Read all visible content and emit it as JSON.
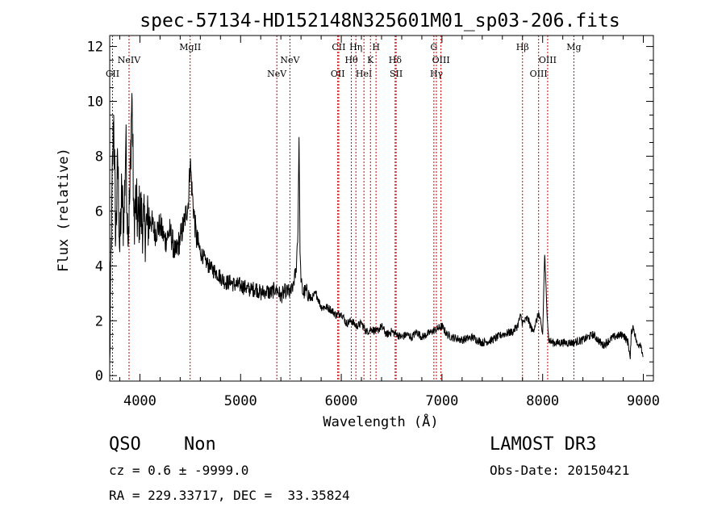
{
  "chart_data": {
    "type": "line",
    "title": "spec-57134-HD152148N325601M01_sp03-206.fits",
    "xlabel": "Wavelength (Å)",
    "ylabel": "Flux (relative)",
    "xlim": [
      3700,
      9100
    ],
    "ylim": [
      -0.2,
      12.4
    ],
    "x_ticks": [
      4000,
      5000,
      6000,
      7000,
      8000,
      9000
    ],
    "y_ticks": [
      0,
      2,
      4,
      6,
      8,
      10,
      12
    ],
    "x_tick_labels": [
      "4000",
      "5000",
      "6000",
      "7000",
      "8000",
      "9000"
    ],
    "y_tick_labels": [
      "0",
      "2",
      "4",
      "6",
      "8",
      "10",
      "12"
    ],
    "grid": false,
    "series": [
      {
        "name": "flux",
        "x": [
          3700,
          3720,
          3740,
          3760,
          3780,
          3800,
          3820,
          3840,
          3860,
          3880,
          3900,
          3920,
          3940,
          3960,
          3980,
          4000,
          4050,
          4100,
          4150,
          4200,
          4250,
          4300,
          4350,
          4400,
          4440,
          4480,
          4500,
          4520,
          4560,
          4600,
          4650,
          4700,
          4750,
          4800,
          4850,
          4900,
          4950,
          5000,
          5050,
          5100,
          5150,
          5200,
          5250,
          5300,
          5350,
          5400,
          5450,
          5500,
          5520,
          5550,
          5570,
          5580,
          5590,
          5600,
          5620,
          5650,
          5700,
          5750,
          5800,
          5850,
          5900,
          5950,
          6000,
          6050,
          6100,
          6150,
          6200,
          6250,
          6300,
          6350,
          6400,
          6450,
          6500,
          6550,
          6600,
          6650,
          6700,
          6750,
          6800,
          6850,
          6900,
          6950,
          7000,
          7050,
          7100,
          7200,
          7300,
          7400,
          7500,
          7600,
          7700,
          7750,
          7780,
          7800,
          7850,
          7900,
          7940,
          7960,
          8000,
          8020,
          8040,
          8060,
          8100,
          8200,
          8300,
          8400,
          8500,
          8600,
          8700,
          8800,
          8850,
          8870,
          8880,
          8900,
          8940,
          8970,
          9000
        ],
        "y": [
          0.5,
          6.2,
          9.5,
          5.0,
          7.8,
          4.5,
          6.8,
          5.2,
          8.6,
          5.0,
          6.5,
          10.3,
          5.8,
          6.3,
          5.6,
          6.0,
          5.3,
          5.8,
          5.2,
          5.5,
          4.9,
          5.3,
          4.4,
          5.0,
          5.6,
          6.3,
          7.8,
          6.6,
          5.0,
          4.5,
          4.2,
          3.9,
          3.8,
          3.6,
          3.4,
          3.4,
          3.3,
          3.3,
          3.2,
          3.1,
          3.2,
          3.0,
          3.1,
          3.0,
          3.2,
          2.9,
          3.1,
          3.0,
          3.3,
          3.8,
          5.3,
          8.7,
          4.5,
          3.4,
          3.0,
          3.1,
          2.8,
          3.0,
          2.5,
          2.5,
          2.4,
          2.2,
          2.3,
          1.9,
          2.0,
          1.8,
          1.9,
          1.6,
          1.7,
          1.6,
          1.8,
          1.5,
          1.6,
          1.5,
          1.4,
          1.5,
          1.4,
          1.6,
          1.4,
          1.5,
          1.6,
          1.7,
          1.8,
          1.5,
          1.4,
          1.3,
          1.4,
          1.2,
          1.3,
          1.5,
          1.6,
          1.8,
          2.2,
          1.9,
          2.1,
          1.6,
          2.0,
          2.3,
          1.5,
          4.4,
          2.6,
          1.3,
          1.2,
          1.2,
          1.2,
          1.3,
          1.5,
          1.1,
          1.4,
          1.5,
          1.2,
          0.6,
          1.6,
          1.8,
          1.1,
          1.2,
          0.7
        ]
      }
    ],
    "line_markers": [
      {
        "label": "CII",
        "x": 3728,
        "row": 3
      },
      {
        "label": "NeIV",
        "x": 3892,
        "row": 2
      },
      {
        "label": "MgII",
        "x": 4499,
        "row": 1
      },
      {
        "label": "NeV",
        "x": 5360,
        "row": 3
      },
      {
        "label": "NeV",
        "x": 5490,
        "row": 2
      },
      {
        "label": "OII",
        "x": 5965,
        "row": 3
      },
      {
        "label": "CII",
        "x": 5975,
        "row": 1
      },
      {
        "label": "Hθ",
        "x": 6100,
        "row": 2
      },
      {
        "label": "Hη",
        "x": 6145,
        "row": 1
      },
      {
        "label": "HeI",
        "x": 6225,
        "row": 3
      },
      {
        "label": "K",
        "x": 6290,
        "row": 2
      },
      {
        "label": "H",
        "x": 6345,
        "row": 1
      },
      {
        "label": "Hδ",
        "x": 6535,
        "row": 2
      },
      {
        "label": "SII",
        "x": 6545,
        "row": 3
      },
      {
        "label": "G",
        "x": 6920,
        "row": 1
      },
      {
        "label": "Hγ",
        "x": 6945,
        "row": 3
      },
      {
        "label": "OIII",
        "x": 6990,
        "row": 2
      },
      {
        "label": "Hβ",
        "x": 7800,
        "row": 1
      },
      {
        "label": "OIII",
        "x": 7960,
        "row": 3
      },
      {
        "label": "OIII",
        "x": 8050,
        "row": 2
      },
      {
        "label": "Mg",
        "x": 8310,
        "row": 1
      }
    ]
  },
  "info": {
    "class": "QSO",
    "subclass": "Non",
    "survey": "LAMOST DR3",
    "cz": "cz = 0.6 ± -9999.0",
    "obs_date": "Obs-Date: 20150421",
    "coords": "RA = 229.33717, DEC =  33.35824"
  },
  "colors": {
    "spectrum": "#000000",
    "marker_line": "#cc0000",
    "axes": "#000000"
  }
}
